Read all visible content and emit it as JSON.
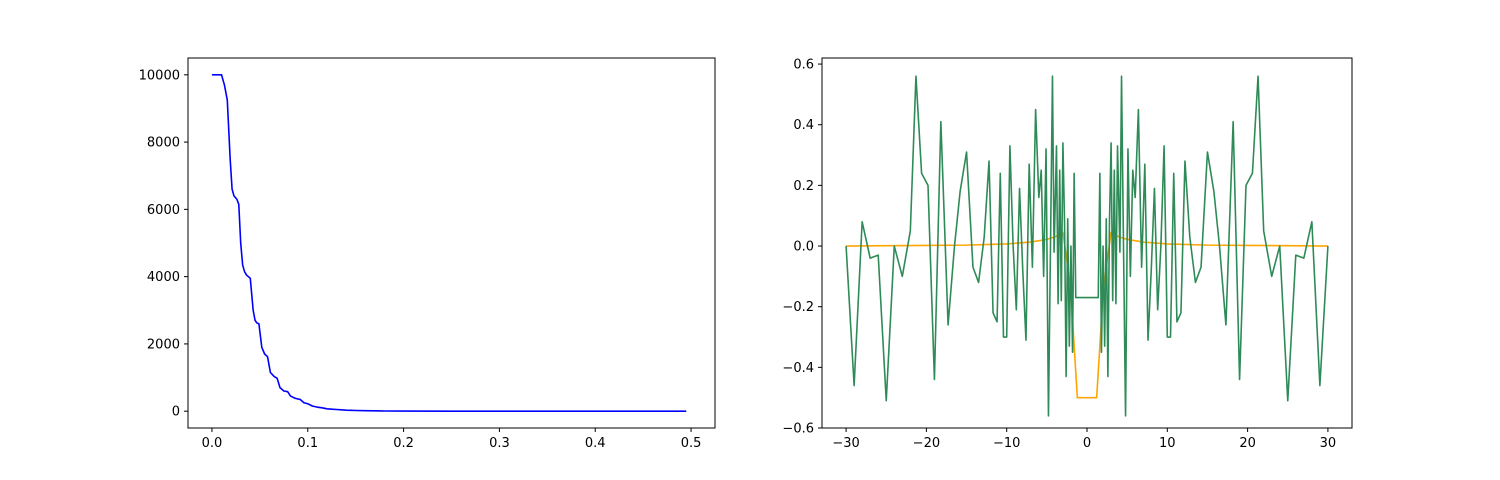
{
  "chart_data": [
    {
      "type": "line",
      "title": "",
      "xlabel": "",
      "ylabel": "",
      "xlim": [
        -0.025,
        0.525
      ],
      "ylim": [
        -500,
        10500
      ],
      "xticks": [
        0.0,
        0.1,
        0.2,
        0.3,
        0.4,
        0.5
      ],
      "xtick_labels": [
        "0.0",
        "0.1",
        "0.2",
        "0.3",
        "0.4",
        "0.5"
      ],
      "yticks": [
        0,
        2000,
        4000,
        6000,
        8000,
        10000
      ],
      "ytick_labels": [
        "0",
        "2000",
        "4000",
        "6000",
        "8000",
        "10000"
      ],
      "grid": false,
      "series": [
        {
          "color": "#0000ff",
          "x": [
            0.0,
            0.01,
            0.013,
            0.016,
            0.019,
            0.021,
            0.023,
            0.026,
            0.028,
            0.03,
            0.032,
            0.034,
            0.036,
            0.04,
            0.043,
            0.045,
            0.047,
            0.049,
            0.052,
            0.055,
            0.058,
            0.061,
            0.065,
            0.068,
            0.071,
            0.075,
            0.079,
            0.082,
            0.087,
            0.092,
            0.096,
            0.1,
            0.105,
            0.11,
            0.115,
            0.12,
            0.125,
            0.13,
            0.135,
            0.14,
            0.145,
            0.15,
            0.16,
            0.17,
            0.18,
            0.2,
            0.25,
            0.3,
            0.4,
            0.495
          ],
          "y": [
            10000,
            10000,
            9700,
            9250,
            7500,
            6600,
            6400,
            6300,
            6150,
            5000,
            4350,
            4150,
            4050,
            3950,
            3000,
            2700,
            2620,
            2600,
            1900,
            1700,
            1620,
            1150,
            1030,
            980,
            700,
            600,
            580,
            450,
            380,
            350,
            250,
            220,
            150,
            120,
            100,
            70,
            60,
            50,
            40,
            30,
            25,
            20,
            15,
            10,
            5,
            2,
            0,
            0,
            0,
            0
          ]
        }
      ]
    },
    {
      "type": "line",
      "title": "",
      "xlabel": "",
      "ylabel": "",
      "xlim": [
        -33,
        33
      ],
      "ylim": [
        -0.6,
        0.62
      ],
      "xticks": [
        -30,
        -20,
        -10,
        0,
        10,
        20,
        30
      ],
      "xtick_labels": [
        "−30",
        "−20",
        "−10",
        "0",
        "10",
        "20",
        "30"
      ],
      "yticks": [
        -0.6,
        -0.4,
        -0.2,
        0.0,
        0.2,
        0.4,
        0.6
      ],
      "ytick_labels": [
        "−0.6",
        "−0.4",
        "−0.2",
        "0.0",
        "0.2",
        "0.4",
        "0.6"
      ],
      "grid": false,
      "series": [
        {
          "color": "#ffa500",
          "x": [
            -30,
            -25,
            -20,
            -15,
            -10,
            -7,
            -5,
            -4,
            -3,
            -2.5,
            -2,
            -1.6,
            -1.2,
            1.2,
            1.6,
            2,
            2.5,
            3,
            4,
            5,
            7,
            10,
            15,
            20,
            25,
            30
          ],
          "y": [
            0.0,
            0.001,
            0.002,
            0.003,
            0.007,
            0.013,
            0.022,
            0.03,
            0.045,
            -0.05,
            -0.15,
            -0.33,
            -0.5,
            -0.5,
            -0.33,
            -0.15,
            -0.05,
            0.045,
            0.03,
            0.022,
            0.013,
            0.007,
            0.003,
            0.002,
            0.001,
            0.0
          ]
        },
        {
          "color": "#2e8b57",
          "x": [
            -30,
            -29,
            -28,
            -27,
            -26,
            -25,
            -24,
            -23,
            -22,
            -21.3,
            -20.6,
            -19.8,
            -19,
            -18.2,
            -17.3,
            -16.5,
            -15.8,
            -15,
            -14.2,
            -13.5,
            -12.8,
            -12.2,
            -11.7,
            -11.2,
            -10.8,
            -10.4,
            -10,
            -9.6,
            -9.2,
            -8.8,
            -8.4,
            -8,
            -7.6,
            -7.2,
            -6.8,
            -6.4,
            -6,
            -5.7,
            -5.4,
            -5.1,
            -4.8,
            -4.5,
            -4.3,
            -4.1,
            -3.8,
            -3.6,
            -3.4,
            -3.2,
            -3,
            -2.8,
            -2.6,
            -2.4,
            -2.2,
            -2,
            -1.8,
            -1.6,
            -1.4,
            -1.2,
            1.2,
            1.4,
            1.6,
            1.8,
            2,
            2.2,
            2.4,
            2.6,
            2.8,
            3,
            3.2,
            3.4,
            3.6,
            3.8,
            4.1,
            4.3,
            4.5,
            4.8,
            5.1,
            5.4,
            5.7,
            6,
            6.4,
            6.8,
            7.2,
            7.6,
            8,
            8.4,
            8.8,
            9.2,
            9.6,
            10,
            10.4,
            10.8,
            11.2,
            11.7,
            12.2,
            12.8,
            13.5,
            14.2,
            15,
            15.8,
            16.5,
            17.3,
            18.2,
            19,
            19.8,
            20.6,
            21.3,
            22,
            23,
            24,
            25,
            26,
            27,
            28,
            29,
            30
          ],
          "y": [
            0.0,
            -0.46,
            0.08,
            -0.04,
            -0.03,
            -0.51,
            0.0,
            -0.1,
            0.05,
            0.56,
            0.24,
            0.2,
            -0.44,
            0.41,
            -0.26,
            0.0,
            0.18,
            0.31,
            -0.07,
            -0.12,
            0.03,
            0.28,
            -0.22,
            -0.25,
            0.24,
            -0.3,
            -0.3,
            0.33,
            0.0,
            -0.21,
            0.19,
            -0.08,
            -0.31,
            0.27,
            -0.07,
            0.45,
            0.16,
            0.25,
            -0.1,
            0.32,
            -0.56,
            0.1,
            0.56,
            -0.02,
            0.33,
            -0.19,
            0.25,
            -0.18,
            0.34,
            0.08,
            -0.43,
            0.09,
            -0.33,
            0.0,
            -0.35,
            0.24,
            -0.17,
            -0.17,
            -0.17,
            -0.17,
            0.24,
            -0.35,
            0.0,
            -0.33,
            0.09,
            -0.43,
            0.08,
            0.34,
            -0.18,
            0.25,
            -0.19,
            0.33,
            -0.02,
            0.56,
            0.1,
            -0.56,
            0.32,
            -0.1,
            0.25,
            0.16,
            0.45,
            -0.07,
            0.27,
            -0.31,
            -0.08,
            0.19,
            -0.21,
            0.0,
            0.33,
            -0.3,
            -0.3,
            0.24,
            -0.25,
            -0.22,
            0.28,
            0.03,
            -0.12,
            -0.07,
            0.31,
            0.18,
            0.0,
            -0.26,
            0.41,
            -0.44,
            0.2,
            0.24,
            0.56,
            0.05,
            -0.1,
            0.0,
            -0.51,
            -0.03,
            -0.04,
            0.08,
            -0.46,
            0.0
          ]
        }
      ]
    }
  ]
}
